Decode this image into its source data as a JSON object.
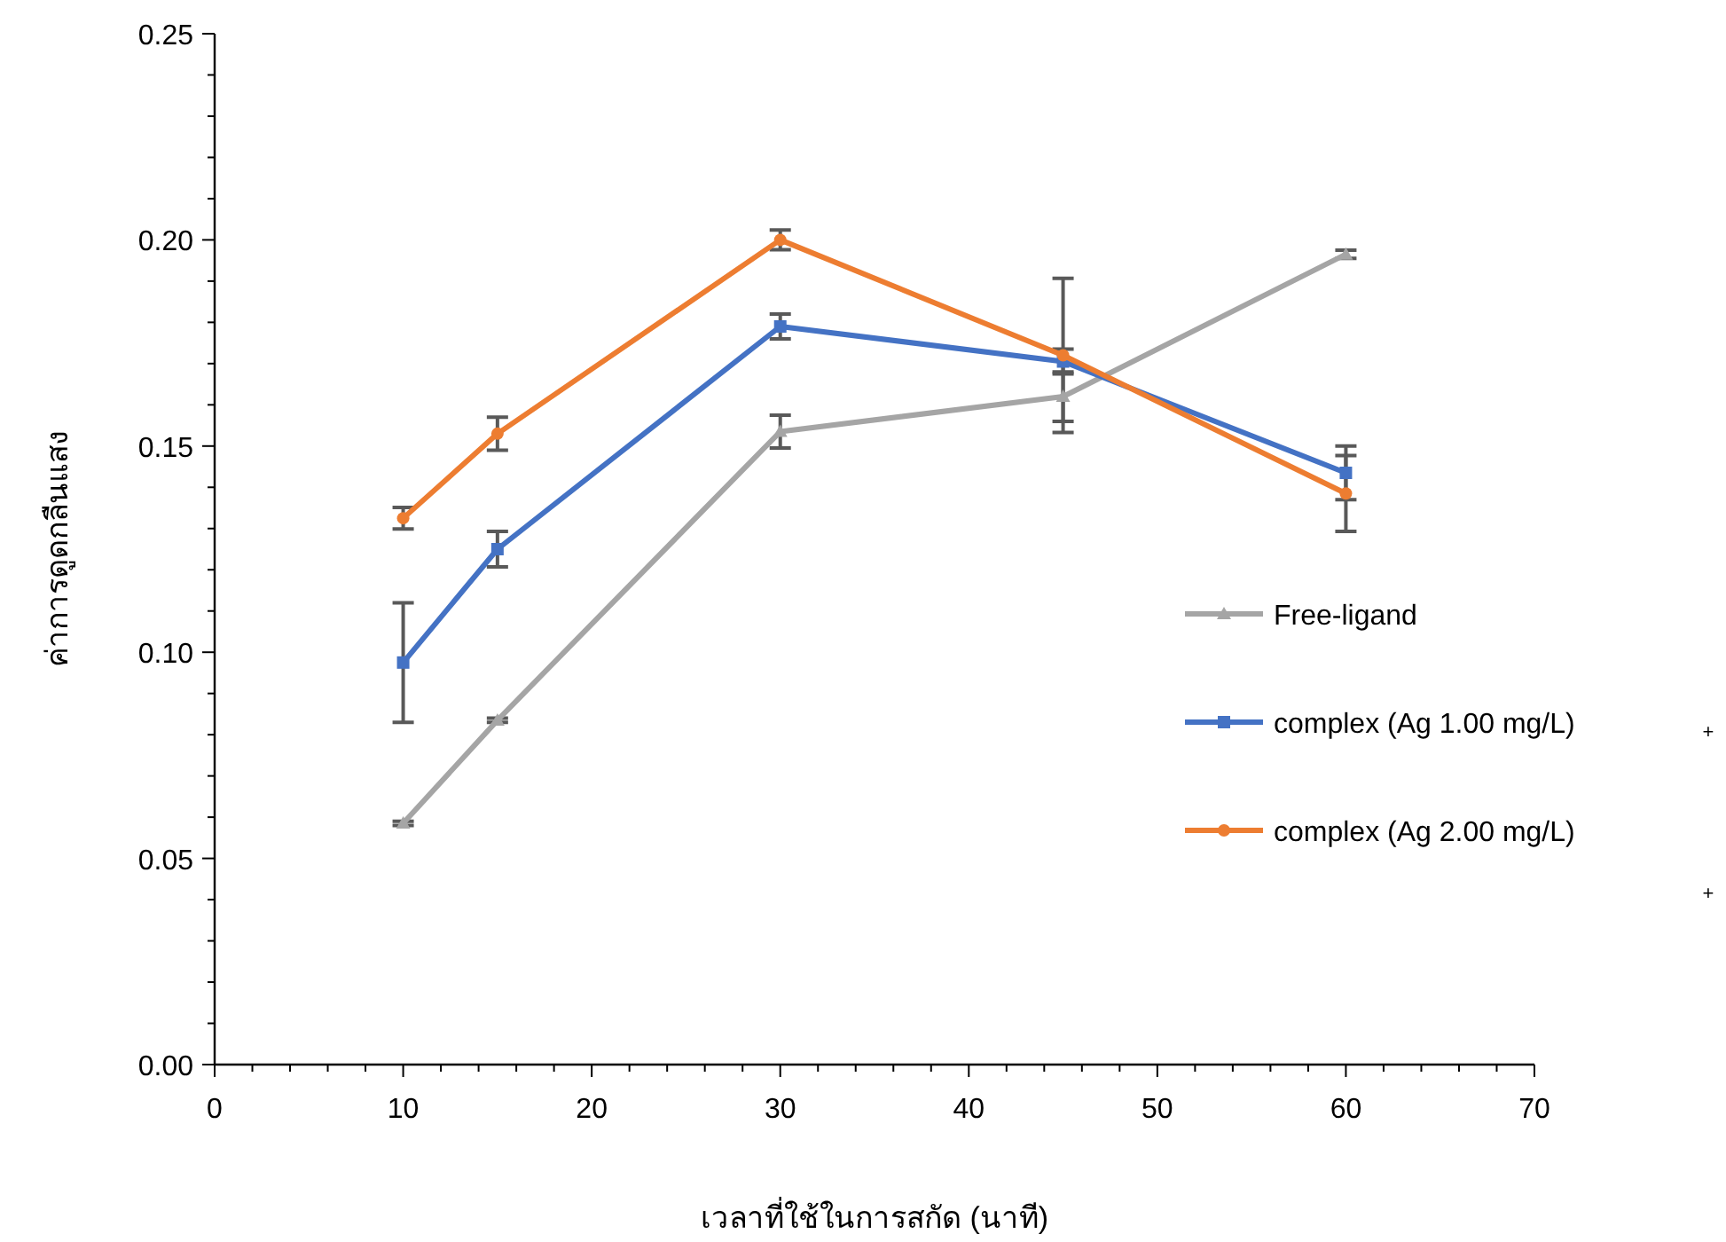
{
  "chart_data": {
    "type": "line",
    "xlabel": "เวลาที่ใช้ในการสกัด (นาที)",
    "ylabel": "ค่าการดูดกลืนแสง",
    "x": [
      10,
      15,
      30,
      45,
      60
    ],
    "series": [
      {
        "name": "Free-ligand",
        "color": "#a5a5a5",
        "marker": "triangle",
        "values": [
          0.0585,
          0.0835,
          0.1535,
          0.162,
          0.1965
        ],
        "errors": [
          0.0005,
          0.0005,
          0.004,
          0.006,
          0.001
        ]
      },
      {
        "name": "complex (Ag 1.00 mg/L)",
        "color": "#4472c4",
        "marker": "square",
        "values": [
          0.0975,
          0.125,
          0.179,
          0.1705,
          0.1435
        ],
        "errors": [
          0.0145,
          0.0043,
          0.003,
          0.003,
          0.0065
        ]
      },
      {
        "name": "complex (Ag 2.00 mg/L)",
        "color": "#ed7d31",
        "marker": "circle",
        "values": [
          0.1325,
          0.153,
          0.2,
          0.172,
          0.1385
        ],
        "errors": [
          0.0026,
          0.004,
          0.0024,
          0.0187,
          0.0092
        ]
      }
    ],
    "xlim": [
      0,
      70
    ],
    "xticks": [
      0,
      10,
      20,
      30,
      40,
      50,
      60,
      70
    ],
    "ylim": [
      0,
      0.25
    ],
    "yticks": [
      {
        "value": 0,
        "label": "0.00"
      },
      {
        "value": 0.05,
        "label": "0.05"
      },
      {
        "value": 0.1,
        "label": "0.10"
      },
      {
        "value": 0.15,
        "label": "0.15"
      },
      {
        "value": 0.2,
        "label": "0.20"
      },
      {
        "value": 0.25,
        "label": "0.25"
      }
    ],
    "legend": "right",
    "grid": false,
    "line_style": "solid",
    "annotations": [
      "+",
      "+"
    ]
  }
}
